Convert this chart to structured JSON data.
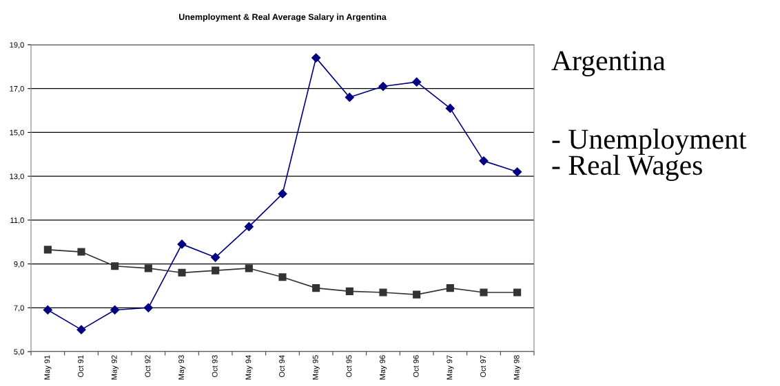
{
  "chart_data": {
    "type": "line",
    "title": "Unemployment & Real Average Salary in Argentina",
    "categories": [
      "May 91",
      "Oct 91",
      "May 92",
      "Oct 92",
      "May 93",
      "Oct 93",
      "May 94",
      "Oct 94",
      "May 95",
      "Oct 95",
      "May 96",
      "Oct 96",
      "May 97",
      "Oct 97",
      "May 98"
    ],
    "series": [
      {
        "color": "#000080",
        "marker": "diamond",
        "values": [
          6.9,
          6.0,
          6.9,
          7.0,
          9.9,
          9.3,
          10.7,
          12.2,
          18.4,
          16.6,
          17.1,
          17.3,
          16.1,
          13.7,
          13.2
        ]
      },
      {
        "color": "#333333",
        "marker": "square",
        "values": [
          9.65,
          9.55,
          8.9,
          8.8,
          8.6,
          8.7,
          8.8,
          8.4,
          7.9,
          7.75,
          7.7,
          7.6,
          7.9,
          7.7,
          7.7
        ]
      }
    ],
    "ylim": [
      5,
      19
    ],
    "yticks": [
      {
        "value": 5,
        "label": "5,0"
      },
      {
        "value": 7,
        "label": "7,0"
      },
      {
        "value": 9,
        "label": "9,0"
      },
      {
        "value": 11,
        "label": "11,0"
      },
      {
        "value": 13,
        "label": "13,0"
      },
      {
        "value": 15,
        "label": "15,0"
      },
      {
        "value": 17,
        "label": "17,0"
      },
      {
        "value": 19,
        "label": "19,0"
      }
    ],
    "grid": "y",
    "legend": false,
    "annotations": [
      "Argentina",
      "- Unemployment\n- Real Wages"
    ]
  }
}
